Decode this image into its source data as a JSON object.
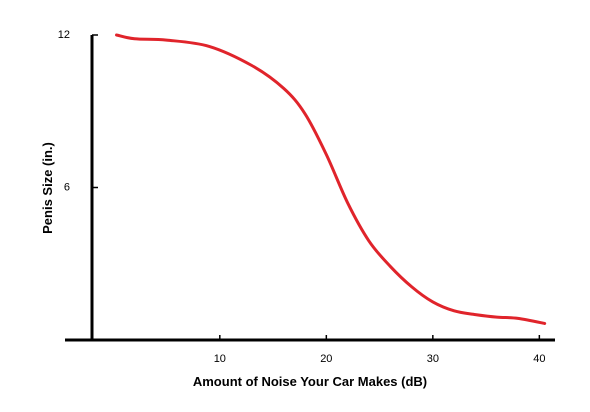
{
  "chart_data": {
    "type": "line",
    "title": "",
    "xlabel": "Amount of Noise Your Car Makes (dB)",
    "ylabel": "Penis Size (in.)",
    "xlim": [
      -2,
      41
    ],
    "ylim": [
      0,
      12
    ],
    "x_ticks": [
      10,
      20,
      30,
      40
    ],
    "y_ticks": [
      6,
      12
    ],
    "grid": false,
    "legend": "none",
    "series": [
      {
        "color": "#e0242b",
        "x": [
          0.3,
          2,
          5,
          9,
          13,
          16,
          18,
          20,
          22,
          24,
          26,
          28,
          30,
          32,
          34,
          36,
          38,
          40.5
        ],
        "y": [
          12.0,
          11.85,
          11.8,
          11.55,
          10.8,
          9.9,
          8.9,
          7.3,
          5.4,
          3.9,
          2.9,
          2.1,
          1.5,
          1.15,
          1.0,
          0.9,
          0.85,
          0.65
        ]
      }
    ]
  }
}
